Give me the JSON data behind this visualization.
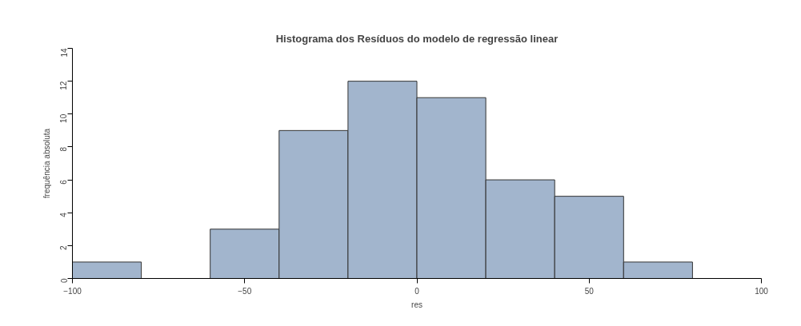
{
  "chart_data": {
    "type": "histogram",
    "title": "Histograma dos Resíduos do modelo de regressão linear",
    "xlabel": "res",
    "ylabel": "frequência absoluta",
    "bins": [
      -100,
      -80,
      -60,
      -40,
      -20,
      0,
      20,
      40,
      60,
      80
    ],
    "values": [
      1,
      0,
      3,
      9,
      12,
      11,
      6,
      5,
      1
    ],
    "color": "#a2b5cd",
    "xlim": [
      -100,
      100
    ],
    "ylim": [
      0,
      14
    ],
    "xticks": [
      -100,
      -50,
      0,
      50,
      100
    ],
    "yticks": [
      0,
      2,
      4,
      6,
      8,
      10,
      12,
      14
    ],
    "grid": false
  }
}
